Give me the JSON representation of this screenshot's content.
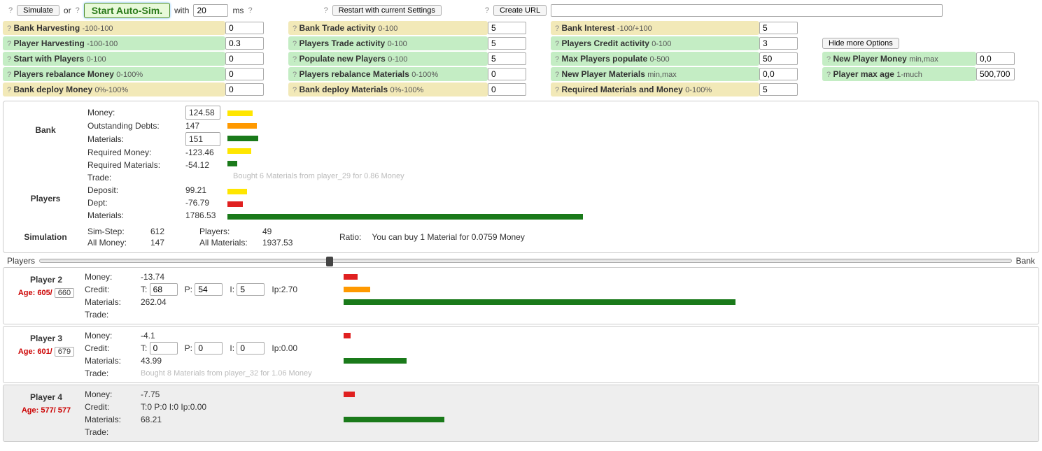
{
  "top": {
    "simulate": "Simulate",
    "or": "or",
    "start_auto": "Start Auto-Sim.",
    "with": "with",
    "ms_value": "20",
    "ms_label": "ms",
    "restart": "Restart with current Settings",
    "create_url": "Create URL",
    "url_value": "",
    "hide_more": "Hide more Options"
  },
  "settings": [
    {
      "row": 0,
      "cells": [
        {
          "cls": "tan",
          "label": "Bank Harvesting",
          "range": "-100-100",
          "val": "0"
        },
        {
          "cls": "tan",
          "label": "Bank Trade activity",
          "range": "0-100",
          "val": "5"
        },
        {
          "cls": "tan",
          "label": "Bank Interest",
          "range": "-100/+100",
          "val": "5"
        },
        null
      ]
    },
    {
      "row": 1,
      "cells": [
        {
          "cls": "grn",
          "label": "Player Harvesting",
          "range": "-100-100",
          "val": "0.3"
        },
        {
          "cls": "grn",
          "label": "Players Trade activity",
          "range": "0-100",
          "val": "5"
        },
        {
          "cls": "grn",
          "label": "Players Credit activity",
          "range": "0-100",
          "val": "3"
        },
        {
          "cls": "plain extra",
          "button": "Hide more Options"
        }
      ]
    },
    {
      "row": 2,
      "cells": [
        {
          "cls": "grn",
          "label": "Start with Players",
          "range": "0-100",
          "val": "0"
        },
        {
          "cls": "grn",
          "label": "Populate new Players",
          "range": "0-100",
          "val": "5"
        },
        {
          "cls": "grn",
          "label": "Max Players populate",
          "range": "0-500",
          "val": "50"
        },
        {
          "cls": "grn",
          "label": "New Player Money",
          "range": "min,max",
          "val": "0,0"
        }
      ]
    },
    {
      "row": 3,
      "cells": [
        {
          "cls": "grn",
          "label": "Players rebalance Money",
          "range": "0-100%",
          "val": "0"
        },
        {
          "cls": "grn",
          "label": "Players rebalance Materials",
          "range": "0-100%",
          "val": "0"
        },
        {
          "cls": "grn",
          "label": "New Player Materials",
          "range": "min,max",
          "val": "0,0"
        },
        {
          "cls": "grn",
          "label": "Player max age",
          "range": "1-much",
          "val": "500,700"
        }
      ]
    },
    {
      "row": 4,
      "cells": [
        {
          "cls": "tan",
          "label": "Bank deploy Money",
          "range": "0%-100%",
          "val": "0"
        },
        {
          "cls": "tan",
          "label": "Bank deploy Materials",
          "range": "0%-100%",
          "val": "0"
        },
        {
          "cls": "tan",
          "label": "Required Materials and Money",
          "range": "0-100%",
          "val": "5"
        },
        null
      ]
    }
  ],
  "bank": {
    "title": "Bank",
    "money_label": "Money:",
    "money": "124.58",
    "debts_label": "Outstanding Debts:",
    "debts": "147",
    "materials_label": "Materials:",
    "materials": "151",
    "req_money_label": "Required Money:",
    "req_money": "-123.46",
    "req_mat_label": "Required Materials:",
    "req_mat": "-54.12",
    "trade_label": "Trade:",
    "trade_text": "Bought 6 Materials from player_29 for 0.86 Money",
    "bars": {
      "money_w": 36,
      "money_color": "yellow",
      "debts_w": 42,
      "debts_color": "orange",
      "materials_w": 44,
      "materials_color": "dgreen",
      "req_money_w": 34,
      "req_money_color": "yellow",
      "req_mat_w": 14,
      "req_mat_color": "dgreen"
    }
  },
  "players_agg": {
    "title": "Players",
    "deposit_label": "Deposit:",
    "deposit": "99.21",
    "dept_label": "Dept:",
    "dept": "-76.79",
    "materials_label": "Materials:",
    "materials": "1786.53",
    "bars": {
      "deposit_w": 28,
      "deposit_color": "yellow",
      "dept_w": 22,
      "dept_color": "red",
      "materials_w": 508,
      "materials_color": "dgreen"
    }
  },
  "sim": {
    "title": "Simulation",
    "step_label": "Sim-Step:",
    "step": "612",
    "allmoney_label": "All Money:",
    "allmoney": "147",
    "players_label": "Players:",
    "players": "49",
    "allmat_label": "All Materials:",
    "allmat": "1937.53",
    "ratio_label": "Ratio:",
    "ratio_text": "You can buy 1 Material for 0.0759 Money"
  },
  "slider": {
    "left": "Players",
    "right": "Bank",
    "thumb_pct": 29.5
  },
  "player_cards": [
    {
      "name": "Player 2",
      "hl": false,
      "age_cur": "605",
      "age_max": "660",
      "age_box": true,
      "money": "-13.74",
      "money_box": true,
      "credit": {
        "T": "68",
        "P": "54",
        "I": "5",
        "Ip": "2.70",
        "boxes": true
      },
      "materials": "262.04",
      "mat_box": true,
      "trade": "",
      "bars": {
        "money_w": 20,
        "money_color": "red",
        "credit_w": 38,
        "credit_color": "orange",
        "mat_w": 560,
        "mat_color": "dgreen"
      }
    },
    {
      "name": "Player 3",
      "hl": false,
      "age_cur": "601",
      "age_max": "679",
      "age_box": true,
      "money": "-4.1",
      "money_box": true,
      "credit": {
        "T": "0",
        "P": "0",
        "I": "0",
        "Ip": "0.00",
        "boxes": true
      },
      "materials": "43.99",
      "mat_box": true,
      "trade": "Bought 8 Materials from player_32 for 1.06 Money",
      "bars": {
        "money_w": 10,
        "money_color": "red",
        "credit_w": 0,
        "credit_color": "orange",
        "mat_w": 90,
        "mat_color": "dgreen"
      }
    },
    {
      "name": "Player 4",
      "hl": true,
      "age_cur": "577",
      "age_max": "577",
      "age_box": false,
      "money": "-7.75",
      "money_box": false,
      "credit": {
        "T": "0",
        "P": "0",
        "I": "0",
        "Ip": "0.00",
        "boxes": false
      },
      "materials": "68.21",
      "mat_box": false,
      "trade": "",
      "bars": {
        "money_w": 16,
        "money_color": "red",
        "credit_w": 0,
        "credit_color": "orange",
        "mat_w": 144,
        "mat_color": "dgreen"
      }
    }
  ],
  "labels": {
    "age_prefix": "Age:",
    "money": "Money:",
    "credit": "Credit:",
    "materials": "Materials:",
    "trade": "Trade:",
    "T": "T:",
    "P": "P:",
    "I": "I:",
    "Ip": "Ip:"
  }
}
